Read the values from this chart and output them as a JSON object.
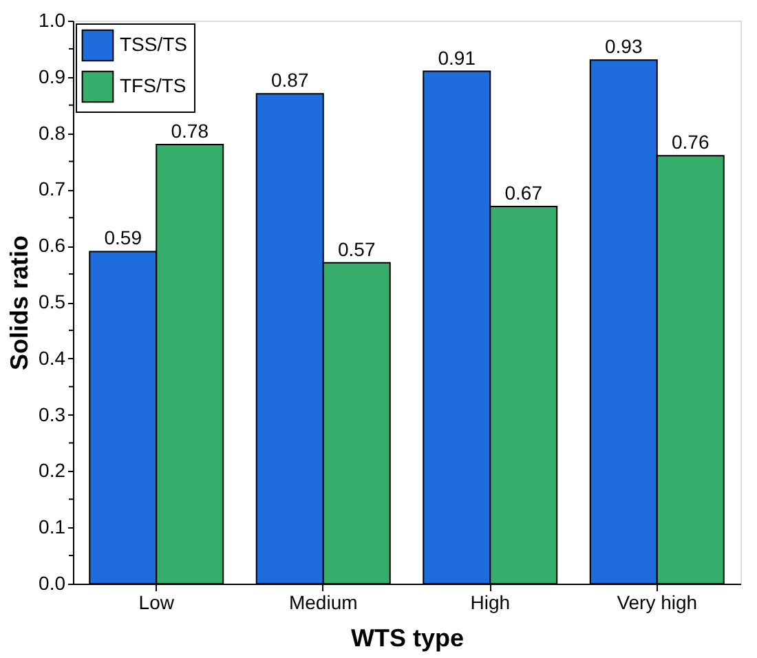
{
  "chart_data": {
    "type": "bar",
    "xlabel": "WTS type",
    "ylabel": "Solids ratio",
    "categories": [
      "Low",
      "Medium",
      "High",
      "Very high"
    ],
    "series": [
      {
        "name": "TSS/TS",
        "color": "#1f6ddc",
        "values": [
          0.59,
          0.87,
          0.91,
          0.93
        ]
      },
      {
        "name": "TFS/TS",
        "color": "#37ad6b",
        "values": [
          0.78,
          0.57,
          0.67,
          0.76
        ]
      }
    ],
    "ylim": [
      0,
      1.0
    ],
    "yticks": [
      {
        "value": 0,
        "label": "0.0"
      },
      {
        "value": 0.05,
        "label": null
      },
      {
        "value": 0.1,
        "label": "0.1"
      },
      {
        "value": 0.15,
        "label": null
      },
      {
        "value": 0.2,
        "label": "0.2"
      },
      {
        "value": 0.25,
        "label": null
      },
      {
        "value": 0.3,
        "label": "0.3"
      },
      {
        "value": 0.35,
        "label": null
      },
      {
        "value": 0.4,
        "label": "0.4"
      },
      {
        "value": 0.45,
        "label": null
      },
      {
        "value": 0.5,
        "label": "0.5"
      },
      {
        "value": 0.55,
        "label": null
      },
      {
        "value": 0.6,
        "label": "0.6"
      },
      {
        "value": 0.65,
        "label": null
      },
      {
        "value": 0.7,
        "label": "0.7"
      },
      {
        "value": 0.75,
        "label": null
      },
      {
        "value": 0.8,
        "label": "0.8"
      },
      {
        "value": 0.85,
        "label": null
      },
      {
        "value": 0.9,
        "label": "0.9"
      },
      {
        "value": 0.95,
        "label": null
      },
      {
        "value": 1.0,
        "label": "1.0"
      }
    ],
    "data_labels": true,
    "grid": false,
    "legend": "top left"
  }
}
